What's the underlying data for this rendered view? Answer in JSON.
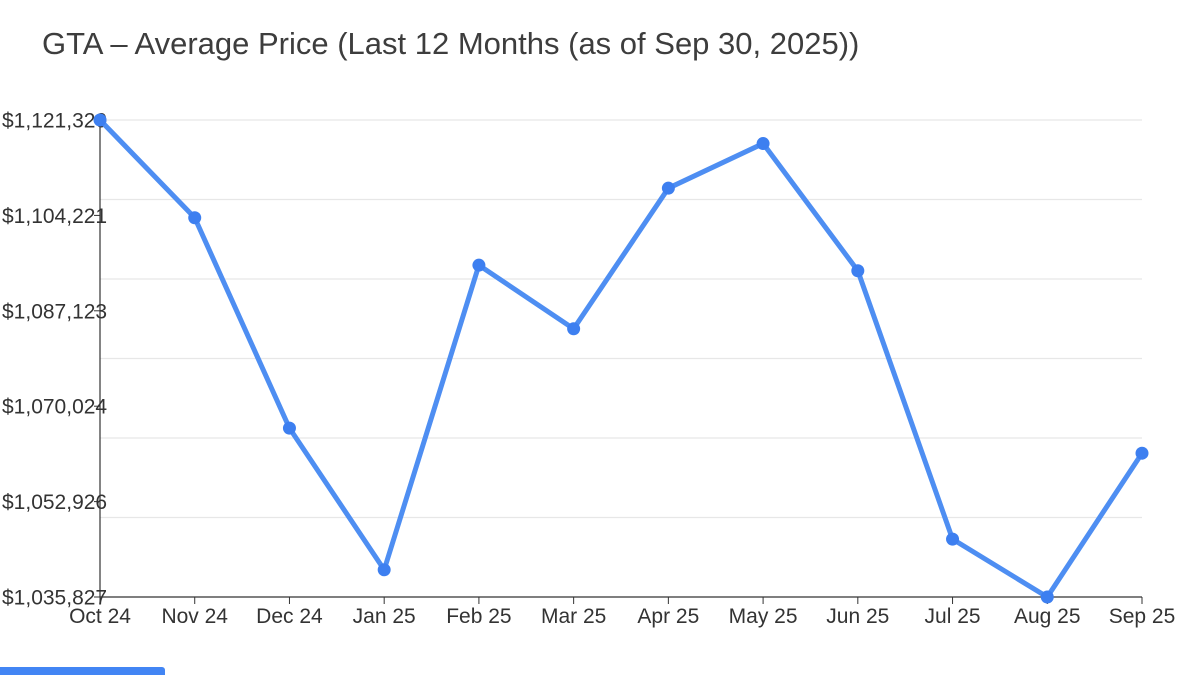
{
  "header": {
    "title": "GTA – Average Price (Last 12 Months (as of Sep 30, 2025))"
  },
  "chart_data": {
    "type": "line",
    "title": "GTA – Average Price (Last 12 Months (as of Sep 30, 2025))",
    "xlabel": "",
    "ylabel": "",
    "categories": [
      "Oct 24",
      "Nov 24",
      "Dec 24",
      "Jan 25",
      "Feb 25",
      "Mar 25",
      "Apr 25",
      "May 25",
      "Jun 25",
      "Jul 25",
      "Aug 25",
      "Sep 25"
    ],
    "series": [
      {
        "name": "Average Price",
        "values": [
          1121320,
          1103800,
          1066100,
          1040700,
          1095300,
          1083900,
          1109100,
          1117100,
          1094300,
          1046200,
          1035827,
          1061600
        ]
      }
    ],
    "ylim": [
      1035827,
      1121320
    ],
    "y_ticks": [
      {
        "value": 1035827,
        "label": "$1,035,827"
      },
      {
        "value": 1052926,
        "label": "$1,052,926"
      },
      {
        "value": 1070024,
        "label": "$1,070,024"
      },
      {
        "value": 1087123,
        "label": "$1,087,123"
      },
      {
        "value": 1104221,
        "label": "$1,104,221"
      },
      {
        "value": 1121320,
        "label": "$1,121,320"
      }
    ],
    "grid": "horizontal",
    "gridline_count": 6,
    "legend_position": "none",
    "colors": {
      "line": "#4e8ef2",
      "point": "#3d7ff0",
      "gridline": "#e7e7e7",
      "axis": "#333333",
      "tick_label": "#333333",
      "title": "#3d3d3d"
    },
    "marker": "circle",
    "line_width": 5,
    "point_radius": 6.5
  },
  "misc": {
    "bottom_left_bar_color": "#4285f4"
  }
}
